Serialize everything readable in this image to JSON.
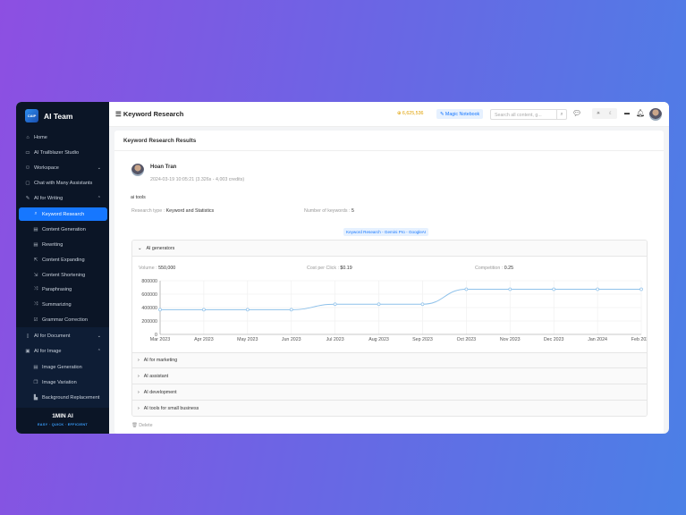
{
  "sidebar": {
    "brand": "AI Team",
    "logo_text": "CAIP",
    "items": [
      {
        "label": "Home",
        "icon": "home-icon",
        "glyph": "⌂"
      },
      {
        "label": "AI Trailblazer Studio",
        "icon": "monitor-icon",
        "glyph": "▭"
      },
      {
        "label": "Workspace",
        "icon": "users-icon",
        "glyph": "⚇",
        "chev": "⌄"
      },
      {
        "label": "Chat with Many Assistants",
        "icon": "chat-icon",
        "glyph": "▢"
      },
      {
        "label": "AI for Writing",
        "icon": "edit-icon",
        "glyph": "✎",
        "chev": "⌃"
      },
      {
        "label": "Keyword Research",
        "icon": "search-icon",
        "glyph": "⌕",
        "sub": true,
        "active": true
      },
      {
        "label": "Content Generation",
        "icon": "file-icon",
        "glyph": "▤",
        "sub": true
      },
      {
        "label": "Rewriting",
        "icon": "file-icon",
        "glyph": "▤",
        "sub": true
      },
      {
        "label": "Content Expanding",
        "icon": "expand-icon",
        "glyph": "⇱",
        "sub": true
      },
      {
        "label": "Content Shortening",
        "icon": "shrink-icon",
        "glyph": "⇲",
        "sub": true
      },
      {
        "label": "Paraphrasing",
        "icon": "arrows-icon",
        "glyph": "⤨",
        "sub": true
      },
      {
        "label": "Summarizing",
        "icon": "arrows-icon",
        "glyph": "⤨",
        "sub": true
      },
      {
        "label": "Grammar Correction",
        "icon": "check-icon",
        "glyph": "☑",
        "sub": true
      },
      {
        "label": "AI for Document",
        "icon": "document-icon",
        "glyph": "▯",
        "chev": "⌄"
      },
      {
        "label": "AI for Image",
        "icon": "image-icon",
        "glyph": "▣",
        "chev": "⌃"
      },
      {
        "label": "Image Generation",
        "icon": "file-icon",
        "glyph": "▤",
        "sub": true
      },
      {
        "label": "Image Variation",
        "icon": "copy-icon",
        "glyph": "❐",
        "sub": true
      },
      {
        "label": "Background Replacement",
        "icon": "layers-icon",
        "glyph": "▙",
        "sub": true
      }
    ],
    "footer_logo": "1MIN AI",
    "footer_tagline": "EASY · QUICK · EFFICIENT"
  },
  "header": {
    "title": "Keyword Research",
    "credits": "⊕ 6,625,536",
    "magic_notebook": "Magic Notebook",
    "search_placeholder": "Search all content, g...",
    "toggle": [
      "☀",
      "☾"
    ]
  },
  "card": {
    "title": "Keyword Research Results",
    "user": "Hoan Tran",
    "meta": "2024-03-19 10:05:21 (3.326s - 4,003 credits)",
    "prompt": "ai tools",
    "research_type_label": "Research type :",
    "research_type": "Keyword and Statistics",
    "num_keywords_label": "Number of keywords :",
    "num_keywords": "5",
    "model_badge": "Keyword Research - Gemini Pro - GoogleAI",
    "keywords": [
      {
        "name": "AI generators",
        "expanded": true,
        "volume_label": "Volume :",
        "volume": "550,000",
        "cpc_label": "Cost per Click :",
        "cpc": "$0.19",
        "competition_label": "Competition :",
        "competition": "0.25"
      },
      {
        "name": "AI for marketing"
      },
      {
        "name": "AI assistant"
      },
      {
        "name": "AI development"
      },
      {
        "name": "AI tools for small business"
      }
    ],
    "delete_label": "Delete"
  },
  "chart_data": {
    "type": "line",
    "categories": [
      "Mar 2023",
      "Apr 2023",
      "May 2023",
      "Jun 2023",
      "Jul 2023",
      "Aug 2023",
      "Sep 2023",
      "Oct 2023",
      "Nov 2023",
      "Dec 2023",
      "Jan 2024",
      "Feb 2024"
    ],
    "values": [
      368000,
      368000,
      368000,
      368000,
      450000,
      450000,
      450000,
      673000,
      673000,
      673000,
      673000,
      673000
    ],
    "ylim": [
      0,
      800000
    ],
    "yticks": [
      "0",
      "200000",
      "400000",
      "600000",
      "800000"
    ],
    "grid": true,
    "color": "#8ec1ea"
  }
}
